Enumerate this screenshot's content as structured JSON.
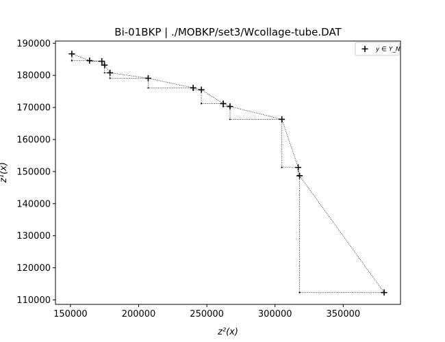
{
  "chart_data": {
    "type": "scatter",
    "title": "Bi-01BKP | ./MOBKP/set3/Wcollage-tube.DAT",
    "xlabel": "z²(x)",
    "ylabel": "z¹(x)",
    "xlim": [
      139000,
      392000
    ],
    "ylim": [
      108600,
      190700
    ],
    "xticks": [
      150000,
      200000,
      250000,
      300000,
      350000
    ],
    "yticks": [
      110000,
      120000,
      130000,
      140000,
      150000,
      160000,
      170000,
      180000,
      190000
    ],
    "xtick_labels": [
      "150000",
      "200000",
      "250000",
      "300000",
      "350000"
    ],
    "ytick_labels": [
      "110000",
      "120000",
      "130000",
      "140000",
      "150000",
      "160000",
      "170000",
      "180000",
      "190000"
    ],
    "grid": false,
    "legend": {
      "position": "top-right",
      "entries": [
        "y ∈ Y_N"
      ]
    },
    "series": [
      {
        "name": "y ∈ Y_N",
        "marker": "+",
        "color": "#000000",
        "points": [
          [
            151000,
            186700
          ],
          [
            164000,
            184600
          ],
          [
            173000,
            184400
          ],
          [
            175000,
            183200
          ],
          [
            179000,
            180800
          ],
          [
            207000,
            179100
          ],
          [
            240000,
            176100
          ],
          [
            246000,
            175500
          ],
          [
            262000,
            171200
          ],
          [
            267000,
            170300
          ],
          [
            305000,
            166300
          ],
          [
            317000,
            151300
          ],
          [
            318000,
            148700
          ],
          [
            380000,
            112300
          ]
        ]
      }
    ],
    "connection_style": "dotted-staircase-and-direct"
  }
}
